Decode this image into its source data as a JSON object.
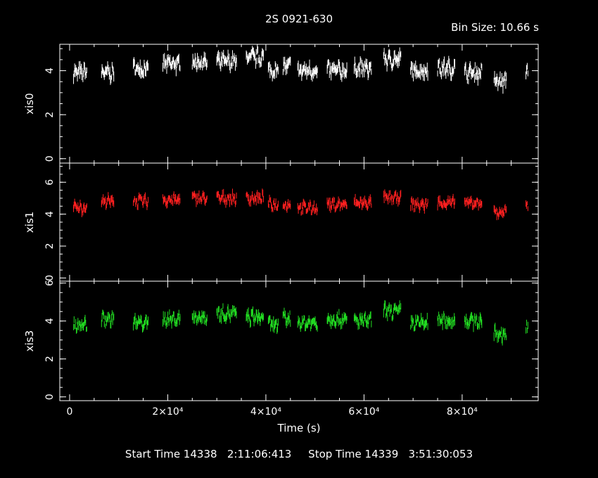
{
  "header": {
    "title": "2S 0921-630",
    "bin_size": "Bin Size: 10.66 s"
  },
  "footer": {
    "text": "Start Time 14338   2:11:06:413     Stop Time 14339   3:51:30:053"
  },
  "chart_data": {
    "type": "scatter",
    "xlabel": "Time (s)",
    "xlim": [
      -2000,
      95500
    ],
    "xticks": [
      {
        "value": 0,
        "label": "0"
      },
      {
        "value": 20000,
        "label": "2×10⁴"
      },
      {
        "value": 40000,
        "label": "4×10⁴"
      },
      {
        "value": 60000,
        "label": "6×10⁴"
      },
      {
        "value": 80000,
        "label": "8×10⁴"
      }
    ],
    "panels": [
      {
        "name": "xis0",
        "color": "#ffffff",
        "ylim": [
          -0.2,
          5.2
        ],
        "yticks": [
          {
            "value": 0,
            "label": "0"
          },
          {
            "value": 2,
            "label": "2"
          },
          {
            "value": 4,
            "label": "4"
          }
        ],
        "minor_step": 0.5
      },
      {
        "name": "xis1",
        "color": "#ff2020",
        "ylim": [
          -0.2,
          7.2
        ],
        "yticks": [
          {
            "value": 0,
            "label": "0"
          },
          {
            "value": 2,
            "label": "2"
          },
          {
            "value": 4,
            "label": "4"
          },
          {
            "value": 6,
            "label": "6"
          }
        ],
        "minor_step": 0.5
      },
      {
        "name": "xis3",
        "color": "#22dd22",
        "ylim": [
          -0.2,
          6.1
        ],
        "yticks": [
          {
            "value": 0,
            "label": "0"
          },
          {
            "value": 2,
            "label": "2"
          },
          {
            "value": 4,
            "label": "4"
          },
          {
            "value": 6,
            "label": "6"
          }
        ],
        "minor_step": 0.5
      }
    ],
    "series": [
      {
        "name": "xis0",
        "segments": [
          {
            "start": 800,
            "end": 3500,
            "level": 3.9
          },
          {
            "start": 6500,
            "end": 9000,
            "level": 3.9
          },
          {
            "start": 13000,
            "end": 16000,
            "level": 4.1
          },
          {
            "start": 19000,
            "end": 22500,
            "level": 4.3
          },
          {
            "start": 25000,
            "end": 28000,
            "level": 4.4
          },
          {
            "start": 30000,
            "end": 34000,
            "level": 4.4
          },
          {
            "start": 36000,
            "end": 39500,
            "level": 4.6
          },
          {
            "start": 40500,
            "end": 42500,
            "level": 4.0
          },
          {
            "start": 43500,
            "end": 45000,
            "level": 4.2
          },
          {
            "start": 46500,
            "end": 50500,
            "level": 4.0
          },
          {
            "start": 52500,
            "end": 56500,
            "level": 4.0
          },
          {
            "start": 58000,
            "end": 61500,
            "level": 4.1
          },
          {
            "start": 64000,
            "end": 67500,
            "level": 4.5
          },
          {
            "start": 69500,
            "end": 73000,
            "level": 4.0
          },
          {
            "start": 75000,
            "end": 78500,
            "level": 4.1
          },
          {
            "start": 80500,
            "end": 84000,
            "level": 3.9
          },
          {
            "start": 86500,
            "end": 89000,
            "level": 3.5
          },
          {
            "start": 93000,
            "end": 93400,
            "level": 4.0
          }
        ]
      },
      {
        "name": "xis1",
        "segments": [
          {
            "start": 800,
            "end": 3500,
            "level": 4.4
          },
          {
            "start": 6500,
            "end": 9000,
            "level": 4.8
          },
          {
            "start": 13000,
            "end": 16000,
            "level": 4.8
          },
          {
            "start": 19000,
            "end": 22500,
            "level": 4.9
          },
          {
            "start": 25000,
            "end": 28000,
            "level": 5.0
          },
          {
            "start": 30000,
            "end": 34000,
            "level": 5.0
          },
          {
            "start": 36000,
            "end": 39500,
            "level": 5.0
          },
          {
            "start": 40500,
            "end": 42500,
            "level": 4.6
          },
          {
            "start": 43500,
            "end": 45000,
            "level": 4.6
          },
          {
            "start": 46500,
            "end": 50500,
            "level": 4.4
          },
          {
            "start": 52500,
            "end": 56500,
            "level": 4.6
          },
          {
            "start": 58000,
            "end": 61500,
            "level": 4.7
          },
          {
            "start": 64000,
            "end": 67500,
            "level": 5.0
          },
          {
            "start": 69500,
            "end": 73000,
            "level": 4.6
          },
          {
            "start": 75000,
            "end": 78500,
            "level": 4.7
          },
          {
            "start": 80500,
            "end": 84000,
            "level": 4.7
          },
          {
            "start": 86500,
            "end": 89000,
            "level": 4.1
          },
          {
            "start": 93000,
            "end": 93400,
            "level": 4.4
          }
        ]
      },
      {
        "name": "xis3",
        "segments": [
          {
            "start": 800,
            "end": 3500,
            "level": 3.8
          },
          {
            "start": 6500,
            "end": 9000,
            "level": 4.1
          },
          {
            "start": 13000,
            "end": 16000,
            "level": 3.9
          },
          {
            "start": 19000,
            "end": 22500,
            "level": 4.1
          },
          {
            "start": 25000,
            "end": 28000,
            "level": 4.2
          },
          {
            "start": 30000,
            "end": 34000,
            "level": 4.4
          },
          {
            "start": 36000,
            "end": 39500,
            "level": 4.2
          },
          {
            "start": 40500,
            "end": 42500,
            "level": 3.8
          },
          {
            "start": 43500,
            "end": 45000,
            "level": 4.1
          },
          {
            "start": 46500,
            "end": 50500,
            "level": 3.9
          },
          {
            "start": 52500,
            "end": 56500,
            "level": 4.1
          },
          {
            "start": 58000,
            "end": 61500,
            "level": 4.0
          },
          {
            "start": 64000,
            "end": 67500,
            "level": 4.5
          },
          {
            "start": 69500,
            "end": 73000,
            "level": 3.9
          },
          {
            "start": 75000,
            "end": 78500,
            "level": 4.0
          },
          {
            "start": 80500,
            "end": 84000,
            "level": 4.0
          },
          {
            "start": 86500,
            "end": 89000,
            "level": 3.3
          },
          {
            "start": 93000,
            "end": 93400,
            "level": 3.6
          }
        ]
      }
    ]
  }
}
